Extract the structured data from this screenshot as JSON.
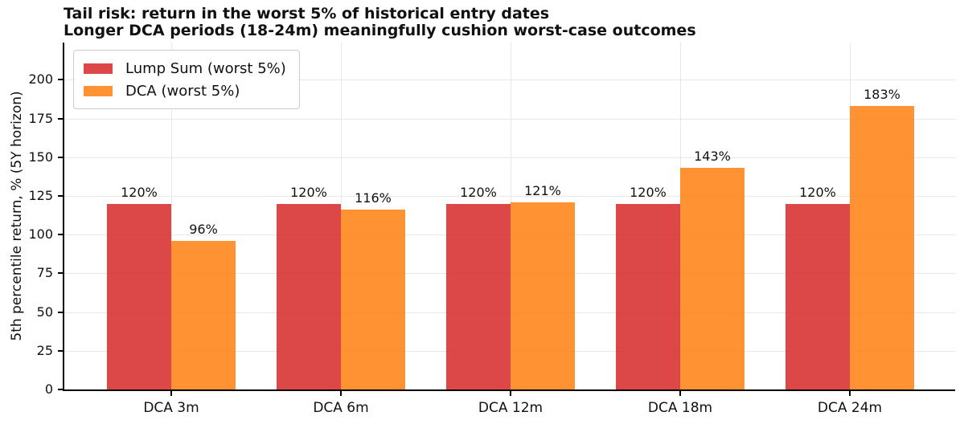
{
  "title": {
    "line1": "Tail risk: return in the worst 5% of historical entry dates",
    "line2": "Longer DCA periods (18-24m) meaningfully cushion worst-case outcomes"
  },
  "chart_data": {
    "type": "bar",
    "categories": [
      "DCA 3m",
      "DCA 6m",
      "DCA 12m",
      "DCA 18m",
      "DCA 24m"
    ],
    "series": [
      {
        "name": "Lump Sum (worst 5%)",
        "color": "rgba(214,39,40,0.85)",
        "values": [
          120,
          120,
          120,
          120,
          120
        ],
        "value_labels": [
          "120%",
          "120%",
          "120%",
          "120%",
          "120%"
        ]
      },
      {
        "name": "DCA (worst 5%)",
        "color": "rgba(255,127,14,0.85)",
        "values": [
          96,
          116,
          121,
          143,
          183
        ],
        "value_labels": [
          "96%",
          "116%",
          "121%",
          "143%",
          "183%"
        ]
      }
    ],
    "xlabel": "",
    "ylabel": "5th percentile return, % (5Y horizon)",
    "yticks": [
      0,
      25,
      50,
      75,
      100,
      125,
      150,
      175,
      200
    ],
    "ylim": [
      0,
      224
    ],
    "grid": true,
    "legend_position": "upper left"
  },
  "colors": {
    "grid": "#e8e8e8",
    "spine": "#000000",
    "text": "#111111",
    "background": "#ffffff",
    "lump_sum_bar": "#d94a4a",
    "dca_bar": "#fb9232"
  }
}
